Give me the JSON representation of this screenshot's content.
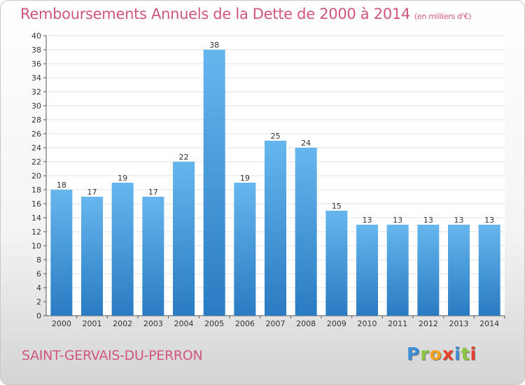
{
  "header": {
    "title": "Remboursements Annuels de la Dette de 2000 à 2014",
    "unit": "(en milliers d'€)"
  },
  "footer": {
    "commune": "SAINT-GERVAIS-DU-PERRON",
    "logo_letters": [
      "P",
      "r",
      "o",
      "x",
      "i",
      "t",
      "i"
    ],
    "logo_colors": [
      "#3a8fd6",
      "#8cc63f",
      "#f7a21b",
      "#e8412b",
      "#3a8fd6",
      "#8cc63f",
      "#e8412b"
    ]
  },
  "colors": {
    "title": "#d0557f",
    "bar_top": "#66b6ee",
    "bar_bottom": "#2a7bc2",
    "grid": "#e2e2e2"
  },
  "chart_data": {
    "type": "bar",
    "title": "Remboursements Annuels de la Dette de 2000 à 2014",
    "categories": [
      "2000",
      "2001",
      "2002",
      "2003",
      "2004",
      "2005",
      "2006",
      "2007",
      "2008",
      "2009",
      "2010",
      "2011",
      "2012",
      "2013",
      "2014"
    ],
    "values": [
      18,
      17,
      19,
      17,
      22,
      38,
      19,
      25,
      24,
      15,
      13,
      13,
      13,
      13,
      13
    ],
    "ylim": [
      0,
      40
    ],
    "yticks": [
      0,
      2,
      4,
      6,
      8,
      10,
      12,
      14,
      16,
      18,
      20,
      22,
      24,
      26,
      28,
      30,
      32,
      34,
      36,
      38,
      40
    ],
    "grid": true,
    "data_labels": true
  }
}
